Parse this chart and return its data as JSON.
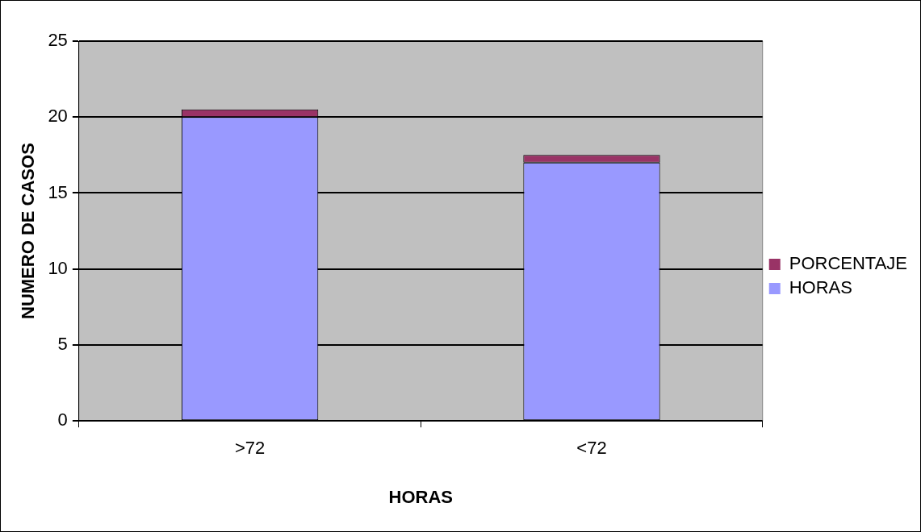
{
  "chart_data": {
    "type": "bar",
    "stacked": true,
    "xlabel": "HORAS",
    "ylabel": "NUMERO DE CASOS",
    "categories": [
      ">72",
      "<72"
    ],
    "series": [
      {
        "name": "HORAS",
        "color": "#9999ff",
        "values": [
          20,
          17
        ]
      },
      {
        "name": "PORCENTAJE",
        "color": "#993366",
        "values": [
          0.5,
          0.5
        ]
      }
    ],
    "ylim": [
      0,
      25
    ],
    "yticks": [
      0,
      5,
      10,
      15,
      20,
      25
    ],
    "grid": "y",
    "legend": "right"
  }
}
